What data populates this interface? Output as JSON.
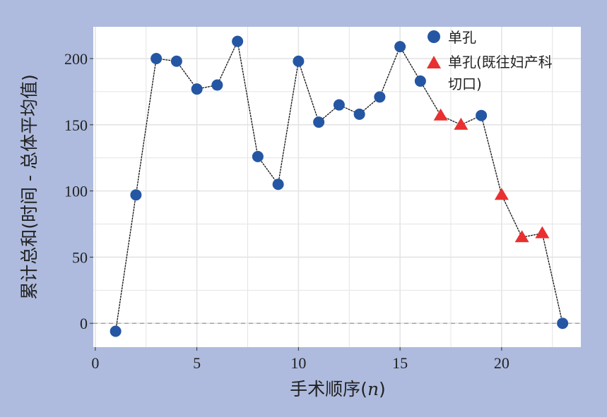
{
  "chart_data": {
    "type": "line",
    "title": "",
    "xlabel": "手术顺序(n)",
    "xlabel_main": "手术顺序(",
    "xlabel_var": "n",
    "xlabel_close": ")",
    "ylabel": "累计总和(时间 - 总体平均值)",
    "xlim": [
      -0.1,
      23.9
    ],
    "ylim": [
      -18,
      224
    ],
    "xticks": [
      0,
      5,
      10,
      15,
      20
    ],
    "yticks": [
      0,
      50,
      100,
      150,
      200
    ],
    "grid": true,
    "reference_line": {
      "y": 0,
      "style": "dashed"
    },
    "legend_placement": "top-right",
    "series": [
      {
        "name": "单孔",
        "marker": "circle",
        "color": "#2456a4",
        "points": [
          [
            1,
            -6
          ],
          [
            2,
            97
          ],
          [
            3,
            200
          ],
          [
            4,
            198
          ],
          [
            5,
            177
          ],
          [
            6,
            180
          ],
          [
            7,
            213
          ],
          [
            8,
            126
          ],
          [
            9,
            105
          ],
          [
            10,
            198
          ],
          [
            11,
            152
          ],
          [
            12,
            165
          ],
          [
            13,
            158
          ],
          [
            14,
            171
          ],
          [
            15,
            209
          ],
          [
            16,
            183
          ],
          [
            19,
            157
          ],
          [
            23,
            0
          ]
        ]
      },
      {
        "name": "单孔(既往妇产科切口)",
        "legend_line1": "单孔(既往妇产科",
        "legend_line2": "切口)",
        "marker": "triangle",
        "color": "#e83030",
        "points": [
          [
            17,
            157
          ],
          [
            18,
            150
          ],
          [
            20,
            97
          ],
          [
            21,
            65
          ],
          [
            22,
            68
          ]
        ]
      }
    ],
    "line_color": "#111111"
  }
}
